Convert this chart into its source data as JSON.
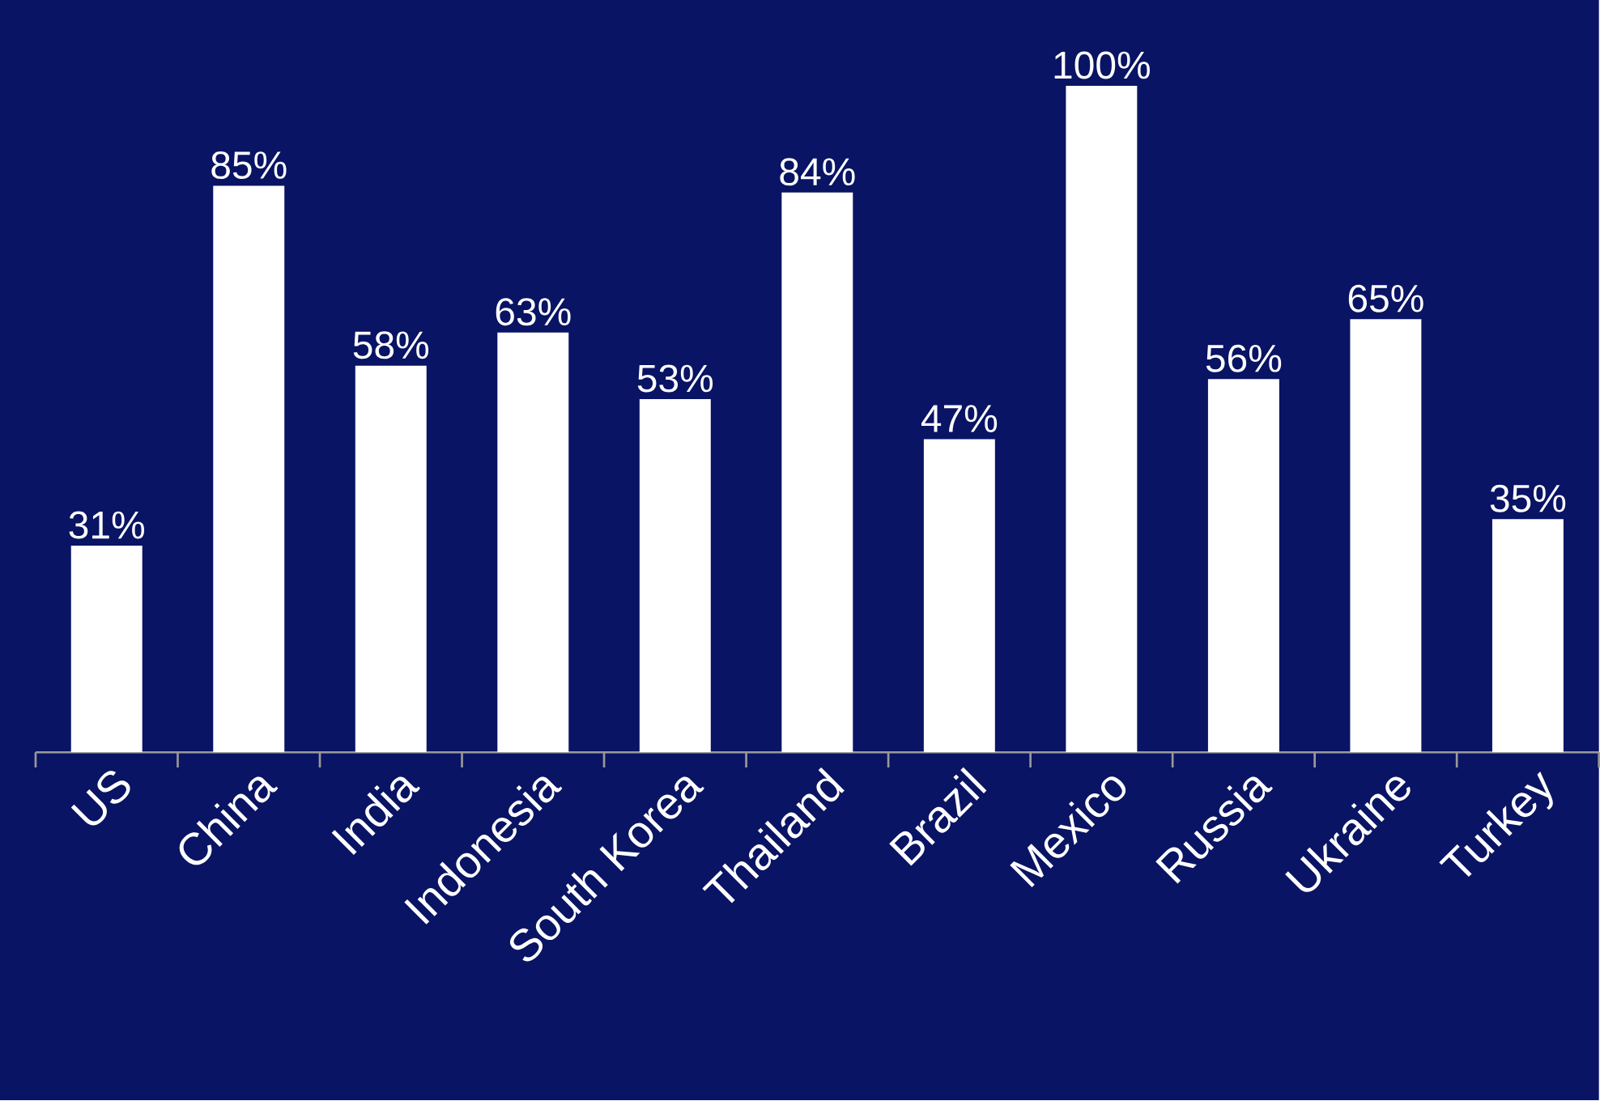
{
  "chart_data": {
    "type": "bar",
    "categories": [
      "US",
      "China",
      "India",
      "Indonesia",
      "South Korea",
      "Thailand",
      "Brazil",
      "Mexico",
      "Russia",
      "Ukraine",
      "Turkey"
    ],
    "values": [
      31,
      85,
      58,
      63,
      53,
      84,
      47,
      100,
      56,
      65,
      35
    ],
    "value_labels": [
      "31%",
      "85%",
      "58%",
      "63%",
      "53%",
      "84%",
      "47%",
      "100%",
      "56%",
      "65%",
      "35%"
    ],
    "color": "#ffffff",
    "tick_labels": "x"
  }
}
